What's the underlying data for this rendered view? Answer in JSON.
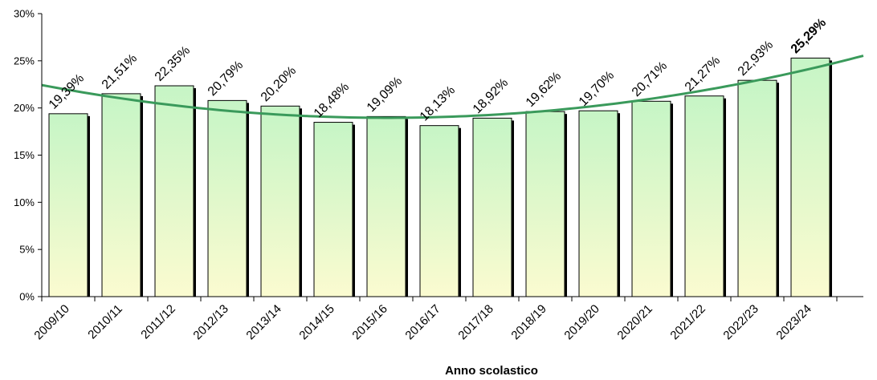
{
  "chart_data": {
    "type": "bar",
    "categories": [
      "2009/10",
      "2010/11",
      "2011/12",
      "2012/13",
      "2013/14",
      "2014/15",
      "2015/16",
      "2016/17",
      "2017/18",
      "2018/19",
      "2019/20",
      "2020/21",
      "2021/22",
      "2022/23",
      "2023/24"
    ],
    "values": [
      19.39,
      21.51,
      22.35,
      20.79,
      20.2,
      18.48,
      19.09,
      18.13,
      18.92,
      19.62,
      19.7,
      20.71,
      21.27,
      22.93,
      25.29
    ],
    "data_labels": [
      "19,39%",
      "21,51%",
      "22,35%",
      "20,79%",
      "20,20%",
      "18,48%",
      "19,09%",
      "18,13%",
      "18,92%",
      "19,62%",
      "19,70%",
      "20,71%",
      "21,27%",
      "22,93%",
      "25,29%"
    ],
    "bold_label_index": 14,
    "ylim": [
      0,
      30
    ],
    "yticks": [
      0,
      5,
      10,
      15,
      20,
      25,
      30
    ],
    "ytick_labels": [
      "0%",
      "5%",
      "10%",
      "15%",
      "20%",
      "25%",
      "30%"
    ],
    "xlabel": "Anno scolastico",
    "ylabel": "",
    "trendline": {
      "type": "polynomial",
      "order": 2,
      "color": "#3a9a5b"
    },
    "bar_fill": [
      "#c6f5c6",
      "#fbfbd0"
    ],
    "grid": false
  }
}
